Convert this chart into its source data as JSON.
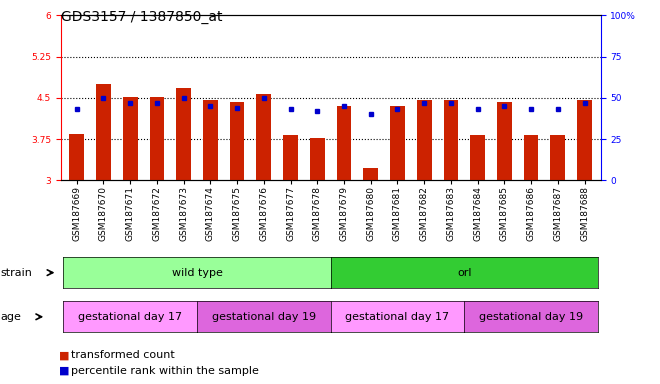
{
  "title": "GDS3157 / 1387850_at",
  "samples": [
    "GSM187669",
    "GSM187670",
    "GSM187671",
    "GSM187672",
    "GSM187673",
    "GSM187674",
    "GSM187675",
    "GSM187676",
    "GSM187677",
    "GSM187678",
    "GSM187679",
    "GSM187680",
    "GSM187681",
    "GSM187682",
    "GSM187683",
    "GSM187684",
    "GSM187685",
    "GSM187686",
    "GSM187687",
    "GSM187688"
  ],
  "transformed_counts": [
    3.85,
    4.75,
    4.52,
    4.52,
    4.68,
    4.47,
    4.42,
    4.57,
    3.83,
    3.78,
    4.35,
    3.22,
    4.35,
    4.47,
    4.47,
    3.83,
    4.42,
    3.83,
    3.83,
    4.47
  ],
  "percentile_ranks": [
    43,
    50,
    47,
    47,
    50,
    45,
    44,
    50,
    43,
    42,
    45,
    40,
    43,
    47,
    47,
    43,
    45,
    43,
    43,
    47
  ],
  "bar_color": "#cc2200",
  "dot_color": "#0000cc",
  "ylim_left": [
    3.0,
    6.0
  ],
  "ylim_right": [
    0,
    100
  ],
  "yticks_left": [
    3.0,
    3.75,
    4.5,
    5.25,
    6.0
  ],
  "yticks_right": [
    0,
    25,
    50,
    75,
    100
  ],
  "hlines": [
    3.75,
    4.5,
    5.25
  ],
  "strain_groups": [
    {
      "label": "wild type",
      "start": 0,
      "end": 10,
      "color": "#99ff99"
    },
    {
      "label": "orl",
      "start": 10,
      "end": 20,
      "color": "#33cc33"
    }
  ],
  "age_groups": [
    {
      "label": "gestational day 17",
      "start": 0,
      "end": 5,
      "color": "#ff99ff"
    },
    {
      "label": "gestational day 19",
      "start": 5,
      "end": 10,
      "color": "#dd66dd"
    },
    {
      "label": "gestational day 17",
      "start": 10,
      "end": 15,
      "color": "#ff99ff"
    },
    {
      "label": "gestational day 19",
      "start": 15,
      "end": 20,
      "color": "#dd66dd"
    }
  ],
  "legend_items": [
    {
      "label": "transformed count",
      "color": "#cc2200"
    },
    {
      "label": "percentile rank within the sample",
      "color": "#0000cc"
    }
  ],
  "plot_bg_color": "#ffffff",
  "title_fontsize": 10,
  "tick_fontsize": 6.5,
  "annot_fontsize": 8,
  "legend_fontsize": 8
}
